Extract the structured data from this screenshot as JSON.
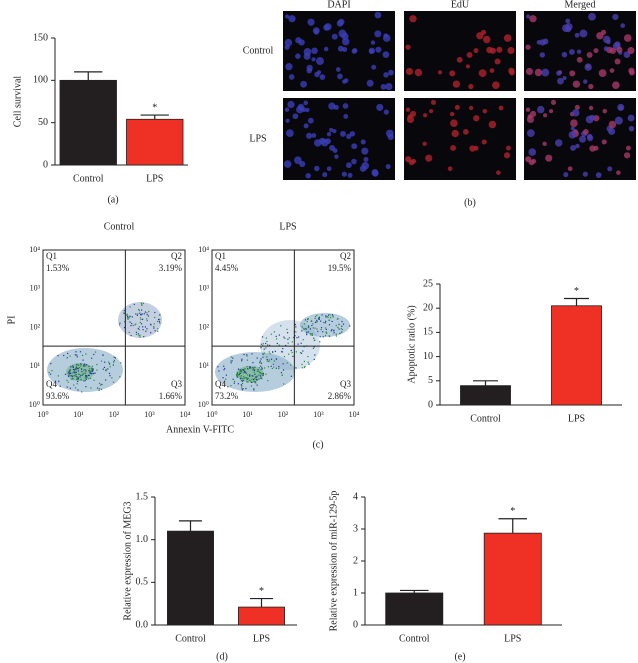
{
  "chart_data": [
    {
      "type": "bar",
      "y_label": "Cell survival",
      "categories": [
        "Control",
        "LPS"
      ],
      "values": [
        100,
        54
      ],
      "errors": [
        10,
        5
      ],
      "annotations": [
        null,
        "*"
      ],
      "colors": [
        "#231f20",
        "#ee3124"
      ],
      "ylim": [
        0,
        150
      ],
      "yticks": [
        0,
        50,
        100,
        150
      ]
    },
    {
      "type": "bar",
      "y_label": "Apoptotic ratio (%)",
      "categories": [
        "Control",
        "LPS"
      ],
      "values": [
        4,
        20.5
      ],
      "errors": [
        1,
        1.5
      ],
      "annotations": [
        null,
        "*"
      ],
      "colors": [
        "#231f20",
        "#ee3124"
      ],
      "ylim": [
        0,
        25
      ],
      "yticks": [
        0,
        5,
        10,
        15,
        20,
        25
      ]
    },
    {
      "type": "bar",
      "y_label": "Relative expression of MEG3",
      "categories": [
        "Control",
        "LPS"
      ],
      "values": [
        1.1,
        0.21
      ],
      "errors": [
        0.12,
        0.1
      ],
      "annotations": [
        null,
        "*"
      ],
      "colors": [
        "#231f20",
        "#ee3124"
      ],
      "ylim": [
        0,
        1.5
      ],
      "yticks": [
        {
          "value": 0,
          "label": "0.0"
        },
        0.5,
        {
          "value": 1,
          "label": "1.0"
        },
        1.5
      ]
    },
    {
      "type": "bar",
      "y_label": "Relative expression of miR-129-5p",
      "categories": [
        "Control",
        "LPS"
      ],
      "values": [
        1.0,
        2.87
      ],
      "errors": [
        0.08,
        0.45
      ],
      "annotations": [
        null,
        "*"
      ],
      "colors": [
        "#231f20",
        "#ee3124"
      ],
      "ylim": [
        0,
        4
      ],
      "yticks": [
        0,
        1,
        2,
        3,
        4
      ]
    }
  ],
  "microscopy": {
    "columns": [
      "DAPI",
      "EdU",
      "Merged"
    ],
    "rows": [
      "Control",
      "LPS"
    ]
  },
  "flow_cytometry": {
    "y_label": "PI",
    "x_label": "Annexin V-FITC",
    "ticks": [
      "10⁰",
      "10¹",
      "10²",
      "10³",
      "10⁴"
    ],
    "plots": [
      {
        "title": "Control",
        "quadrants": [
          {
            "name": "Q1",
            "percent": "1.53%"
          },
          {
            "name": "Q2",
            "percent": "3.19%"
          },
          {
            "name": "Q3",
            "percent": "1.66%"
          },
          {
            "name": "Q4",
            "percent": "93.6%"
          }
        ]
      },
      {
        "title": "LPS",
        "quadrants": [
          {
            "name": "Q1",
            "percent": "4.45%"
          },
          {
            "name": "Q2",
            "percent": "19.5%"
          },
          {
            "name": "Q3",
            "percent": "2.86%"
          },
          {
            "name": "Q4",
            "percent": "73.2%"
          }
        ]
      }
    ]
  },
  "panel_labels": [
    "(a)",
    "(b)",
    "(c)",
    "(d)",
    "(e)"
  ]
}
